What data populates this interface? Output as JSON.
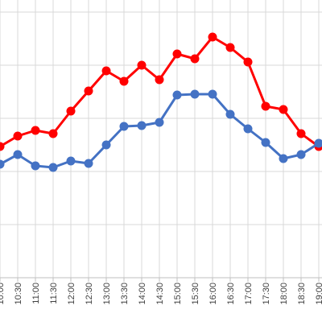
{
  "chart_data": {
    "type": "line",
    "x": [
      "10:00",
      "10:30",
      "11:00",
      "11:30",
      "12:00",
      "12:30",
      "13:00",
      "13:30",
      "14:00",
      "14:30",
      "15:00",
      "15:30",
      "16:00",
      "16:30",
      "17:00",
      "17:30",
      "18:00",
      "18:30",
      "19:00"
    ],
    "series": [
      {
        "color": "#ff0000",
        "values": [
          182,
          169,
          162,
          166,
          138,
          113,
          88,
          101,
          81,
          99,
          67,
          73,
          46,
          59,
          77,
          132,
          136,
          166,
          182
        ]
      },
      {
        "color": "#4472c4",
        "values": [
          204,
          192,
          206,
          208,
          200,
          203,
          180,
          157,
          156,
          152,
          118,
          117,
          117,
          142,
          160,
          177,
          197,
          192,
          178
        ]
      }
    ],
    "grid": true,
    "legend": "none"
  }
}
